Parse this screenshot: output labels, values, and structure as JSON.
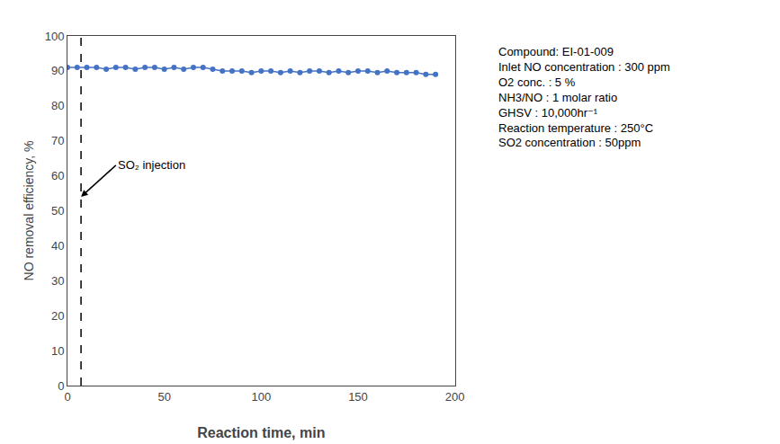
{
  "chart_data": {
    "type": "line",
    "x": [
      0,
      5,
      10,
      15,
      20,
      25,
      30,
      35,
      40,
      45,
      50,
      55,
      60,
      65,
      70,
      75,
      80,
      85,
      90,
      95,
      100,
      105,
      110,
      115,
      120,
      125,
      130,
      135,
      140,
      145,
      150,
      155,
      160,
      165,
      170,
      175,
      180,
      185,
      190
    ],
    "values": [
      91,
      91,
      91,
      91,
      90.5,
      91,
      91,
      90.5,
      91,
      91,
      90.5,
      91,
      90.5,
      91,
      91,
      90.5,
      90,
      90,
      90,
      89.5,
      90,
      90,
      89.5,
      90,
      89.5,
      90,
      90,
      89.5,
      90,
      89.5,
      90,
      90,
      89.5,
      90,
      89.5,
      89.5,
      89.5,
      89,
      89
    ],
    "color": "#4472C4",
    "marker": "circle",
    "xlabel": "Reaction time, min",
    "ylabel": "NO removal efficiency, %",
    "xlim": [
      0,
      200
    ],
    "ylim": [
      0,
      100
    ],
    "xticks": [
      0,
      50,
      100,
      150,
      200
    ],
    "yticks": [
      0,
      10,
      20,
      30,
      40,
      50,
      60,
      70,
      80,
      90,
      100
    ],
    "grid": false,
    "vline": {
      "x": 7,
      "line_style": "dashed",
      "color": "black"
    },
    "annotations": [
      {
        "text": "SO₂ injection",
        "x": 7,
        "y": 54,
        "text_x": 25,
        "text_y": 63
      }
    ],
    "info_text": [
      "Compound: EI-01-009",
      "Inlet NO concentration : 300 ppm",
      "O2 conc. : 5 %",
      "NH3/NO : 1 molar ratio",
      "GHSV : 10,000hr⁻¹",
      "Reaction temperature : 250°C",
      "SO2 concentration : 50ppm"
    ]
  }
}
